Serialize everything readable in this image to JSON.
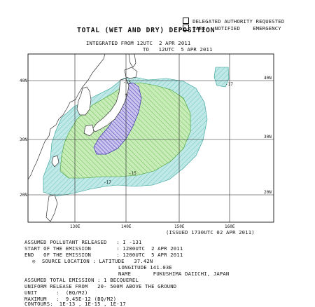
{
  "header": {
    "checkbox1_label": "DELEGATED AUTHORITY REQUESTED",
    "checkbox2_label": "IAEA   NOTIFIED    EMERGENCY",
    "title": "TOTAL (WET AND DRY) DEPOSITION",
    "integrated_from": "INTEGRATED FROM 12UTC  2 APR 2011",
    "integrated_to": "TO   12UTC  5 APR 2011"
  },
  "map": {
    "lat_labels": [
      "40N",
      "30N",
      "20N"
    ],
    "lon_labels": [
      "130E",
      "140E",
      "150E",
      "160E"
    ],
    "issued": "(ISSUED 1730UTC 02 APR 2011)",
    "contour_labels": [
      "-13",
      "-15",
      "-17",
      "-17"
    ],
    "source_marker": "*",
    "colors": {
      "outer_contour": "#bfe8e6",
      "outer_hatch": "#6cc8c4",
      "middle_contour": "#c8ecb8",
      "middle_hatch": "#6fbf5a",
      "inner_contour": "#c9c3ee",
      "inner_hatch": "#4b40b8",
      "land": "#ffffff",
      "coast": "#333333"
    }
  },
  "info": {
    "pollutant": "ASSUMED POLLUTANT RELEASED   : I -131",
    "start": "START OF THE EMISSION        : 1200UTC  2 APR 2011",
    "end": "END   OF THE EMISSION        : 1200UTC  5 APR 2011",
    "source_symbol": "◎",
    "source_location": "SOURCE LOCATION : LATITUDE   37.42N",
    "longitude": "LONGITUDE 141.03E",
    "name": "NAME       FUKUSHIMA DAIICHI, JAPAN",
    "total_emission": "ASSUMED TOTAL EMISSION : 1 BECQUEREL",
    "uniform_release": "UNIFORM RELEASE FROM   20- 500M ABOVE THE GROUND",
    "unit": "UNIT      :  (BQ/M2)",
    "maximum": "MAXIMUM   :  9.45E-12 (BQ/M2)",
    "contours": "CONTOURS:  1E-13 , 1E-15 , 1E-17"
  }
}
